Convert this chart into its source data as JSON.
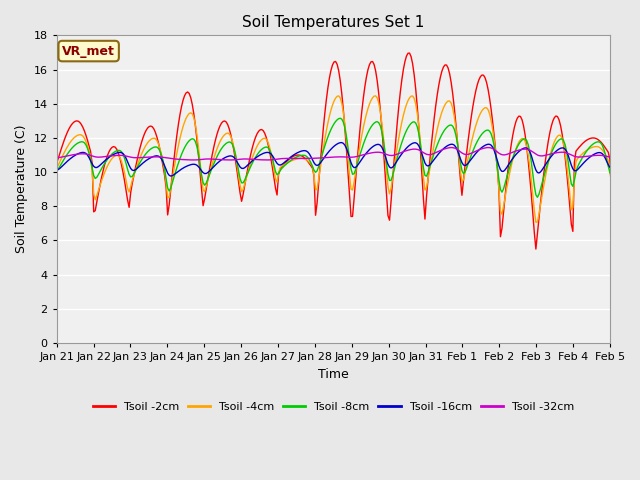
{
  "title": "Soil Temperatures Set 1",
  "xlabel": "Time",
  "ylabel": "Soil Temperature (C)",
  "ylim": [
    0,
    18
  ],
  "yticks": [
    0,
    2,
    4,
    6,
    8,
    10,
    12,
    14,
    16,
    18
  ],
  "xtick_labels": [
    "Jan 21",
    "Jan 22",
    "Jan 23",
    "Jan 24",
    "Jan 25",
    "Jan 26",
    "Jan 27",
    "Jan 28",
    "Jan 29",
    "Jan 30",
    "Jan 31",
    "Feb 1",
    "Feb 2",
    "Feb 3",
    "Feb 4",
    "Feb 5"
  ],
  "annotation_text": "VR_met",
  "annotation_color": "#8B0000",
  "annotation_bg": "#FFFACD",
  "line_colors": {
    "Tsoil -2cm": "#FF0000",
    "Tsoil -4cm": "#FFA500",
    "Tsoil -8cm": "#00CC00",
    "Tsoil -16cm": "#0000CC",
    "Tsoil -32cm": "#CC00CC"
  },
  "legend_labels": [
    "Tsoil -2cm",
    "Tsoil -4cm",
    "Tsoil -8cm",
    "Tsoil -16cm",
    "Tsoil -32cm"
  ],
  "background_color": "#E8E8E8",
  "plot_bg": "#F0F0F0",
  "grid_color": "#FFFFFF"
}
